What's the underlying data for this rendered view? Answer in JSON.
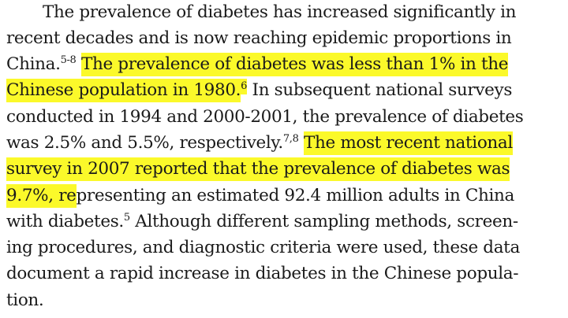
{
  "paragraph": {
    "lines": [
      [
        {
          "text": "The prevalence of diabetes has increased significantly in"
        }
      ],
      [
        {
          "text": "recent decades and is now reaching epidemic proportions in"
        }
      ],
      [
        {
          "text": "China."
        },
        {
          "text": "5-8",
          "sup": true
        },
        {
          "text": " "
        },
        {
          "text": "The prevalence of diabetes was less than 1% in the",
          "hl": true
        }
      ],
      [
        {
          "text": "Chinese population in 1980.",
          "hl": true
        },
        {
          "text": "6",
          "sup": true,
          "hl": true
        },
        {
          "text": " In subsequent national surveys"
        }
      ],
      [
        {
          "text": "conducted in 1994 and 2000-2001, the prevalence of diabetes"
        }
      ],
      [
        {
          "text": "was 2.5% and 5.5%, respectively."
        },
        {
          "text": "7,8",
          "sup": true
        },
        {
          "text": " "
        },
        {
          "text": "The most recent national",
          "hl": true
        }
      ],
      [
        {
          "text": "survey in 2007 reported that the prevalence of diabetes was",
          "hl": true
        }
      ],
      [
        {
          "text": "9.7%, re",
          "hl": true
        },
        {
          "text": "presenting an estimated 92.4 million adults in China"
        }
      ],
      [
        {
          "text": "with diabetes."
        },
        {
          "text": "5",
          "sup": true
        },
        {
          "text": " Although different sampling methods, screen-"
        }
      ],
      [
        {
          "text": "ing procedures, and diagnostic criteria were used, these data"
        }
      ],
      [
        {
          "text": "document a rapid increase in diabetes in the Chinese popula-"
        }
      ],
      [
        {
          "text": "tion."
        }
      ]
    ]
  },
  "colors": {
    "highlight": "#fbf92a",
    "text": "#1a1a1a"
  }
}
